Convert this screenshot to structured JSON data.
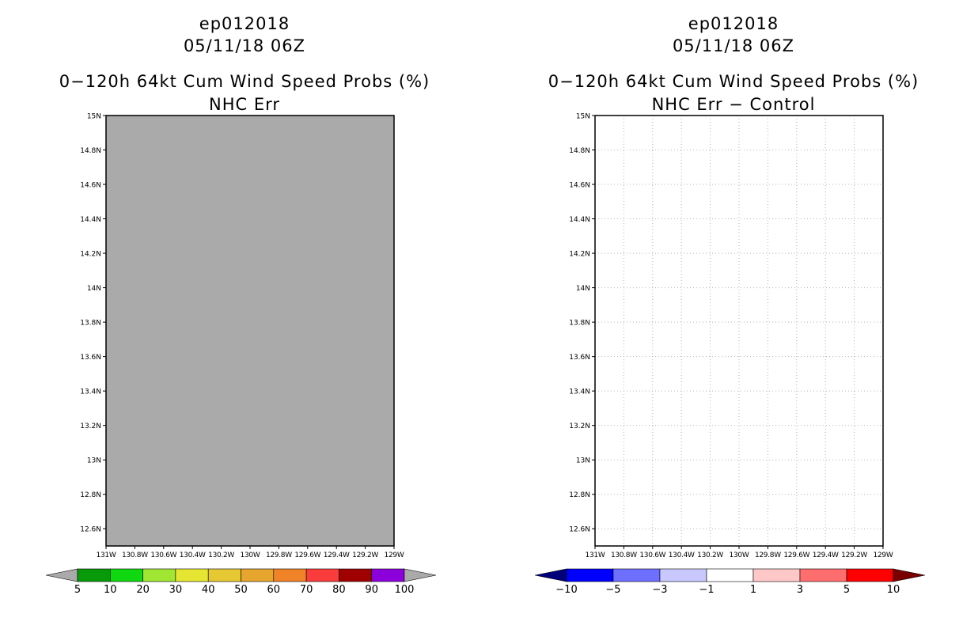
{
  "left_panel": {
    "storm_id": "ep012018",
    "datetime": "05/11/18 06Z",
    "product": "0−120h 64kt Cum Wind Speed Probs (%)",
    "subtitle": "NHC Err"
  },
  "right_panel": {
    "storm_id": "ep012018",
    "datetime": "05/11/18 06Z",
    "product": "0−120h 64kt Cum Wind Speed Probs (%)",
    "subtitle": "NHC Err − Control"
  },
  "chart_data": [
    {
      "type": "heatmap",
      "title": "NHC Err",
      "fill_color": "#aaaaaa",
      "grid": false,
      "xlim": [
        -131,
        -129
      ],
      "ylim": [
        12.5,
        15
      ],
      "x_ticks": [
        -131,
        -130.8,
        -130.6,
        -130.4,
        -130.2,
        -130,
        -129.8,
        -129.6,
        -129.4,
        -129.2,
        -129
      ],
      "x_tick_labels": [
        "131W",
        "130.8W",
        "130.6W",
        "130.4W",
        "130.2W",
        "130W",
        "129.8W",
        "129.6W",
        "129.4W",
        "129.2W",
        "129W"
      ],
      "y_ticks": [
        15,
        14.8,
        14.6,
        14.4,
        14.2,
        14,
        13.8,
        13.6,
        13.4,
        13.2,
        13,
        12.8,
        12.6
      ],
      "y_tick_labels": [
        "15N",
        "14.8N",
        "14.6N",
        "14.4N",
        "14.2N",
        "14N",
        "13.8N",
        "13.6N",
        "13.4N",
        "13.2N",
        "13N",
        "12.8N",
        "12.6N"
      ],
      "colorbar": {
        "levels": [
          "5",
          "10",
          "20",
          "30",
          "40",
          "50",
          "60",
          "70",
          "80",
          "90",
          "100"
        ],
        "colors": [
          "#aaaaaa",
          "#089a08",
          "#10d810",
          "#a0e632",
          "#e6e632",
          "#e6c832",
          "#e6a52d",
          "#f08228",
          "#fa3c3c",
          "#a00000",
          "#8c00dc",
          "#aaaaaa"
        ]
      }
    },
    {
      "type": "heatmap",
      "title": "NHC Err − Control",
      "fill_color": "#ffffff",
      "grid": true,
      "xlim": [
        -131,
        -129
      ],
      "ylim": [
        12.5,
        15
      ],
      "x_ticks": [
        -131,
        -130.8,
        -130.6,
        -130.4,
        -130.2,
        -130,
        -129.8,
        -129.6,
        -129.4,
        -129.2,
        -129
      ],
      "x_tick_labels": [
        "131W",
        "130.8W",
        "130.6W",
        "130.4W",
        "130.2W",
        "130W",
        "129.8W",
        "129.6W",
        "129.4W",
        "129.2W",
        "129W"
      ],
      "y_ticks": [
        15,
        14.8,
        14.6,
        14.4,
        14.2,
        14,
        13.8,
        13.6,
        13.4,
        13.2,
        13,
        12.8,
        12.6
      ],
      "y_tick_labels": [
        "15N",
        "14.8N",
        "14.6N",
        "14.4N",
        "14.2N",
        "14N",
        "13.8N",
        "13.6N",
        "13.4N",
        "13.2N",
        "13N",
        "12.8N",
        "12.6N"
      ],
      "colorbar": {
        "levels": [
          "−10",
          "−5",
          "−3",
          "−1",
          "1",
          "3",
          "5",
          "10"
        ],
        "colors": [
          "#00007a",
          "#0000ff",
          "#6e6eff",
          "#c8c8ff",
          "#ffffff",
          "#ffc8c8",
          "#ff6e6e",
          "#ff0000",
          "#7a0000"
        ]
      }
    }
  ]
}
